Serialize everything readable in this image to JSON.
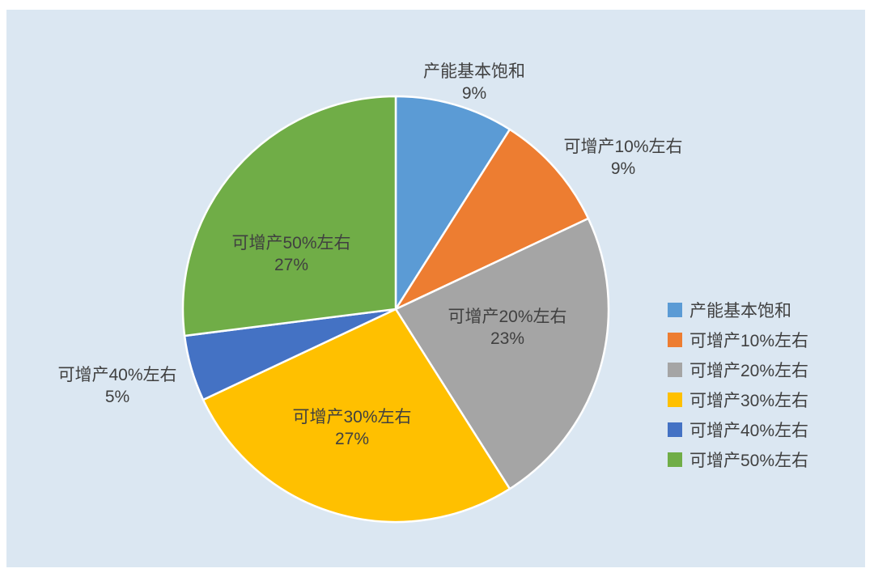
{
  "app": {
    "page_background": "#FFFFFF",
    "panel_background": "#DBE7F2"
  },
  "chart_data": {
    "type": "pie",
    "title": "",
    "start_angle_deg": 0,
    "direction": "clockwise",
    "legend_position": "right",
    "label_text_color": "#404040",
    "slice_border_color": "#FFFFFF",
    "slices": [
      {
        "label": "产能基本饱和",
        "value": 9,
        "pct_label": "9%",
        "color": "#5B9BD5",
        "label_placement": "outside-top"
      },
      {
        "label": "可增产10%左右",
        "value": 9,
        "pct_label": "9%",
        "color": "#ED7D31",
        "label_placement": "outside-top-right"
      },
      {
        "label": "可增产20%左右",
        "value": 23,
        "pct_label": "23%",
        "color": "#A5A5A5",
        "label_placement": "inside"
      },
      {
        "label": "可增产30%左右",
        "value": 27,
        "pct_label": "27%",
        "color": "#FFC000",
        "label_placement": "inside"
      },
      {
        "label": "可增产40%左右",
        "value": 5,
        "pct_label": "5%",
        "color": "#4472C4",
        "label_placement": "outside-left"
      },
      {
        "label": "可增产50%左右",
        "value": 27,
        "pct_label": "27%",
        "color": "#70AD47",
        "label_placement": "inside"
      }
    ]
  }
}
